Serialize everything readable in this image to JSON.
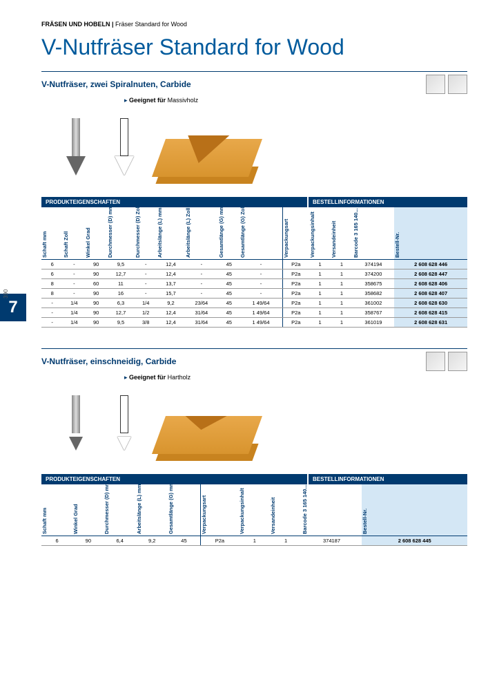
{
  "nav": {
    "page_side": "390",
    "chapter": "7"
  },
  "breadcrumb": {
    "main": "FRÄSEN UND HOBELN",
    "sep": " | ",
    "sub": "Fräser Standard for Wood"
  },
  "title": "V-Nutfräser Standard for Wood",
  "sections": [
    {
      "title": "V-Nutfräser, zwei Spiralnuten, Carbide",
      "suitable_label": "Geeignet für",
      "suitable_value": "Massivholz"
    },
    {
      "title": "V-Nutfräser, einschneidig, Carbide",
      "suitable_label": "Geeignet für",
      "suitable_value": "Hartholz"
    }
  ],
  "bars": {
    "prod": "PRODUKTEIGENSCHAFTEN",
    "order": "BESTELLINFORMATIONEN"
  },
  "table1": {
    "columns": [
      "Schaft mm",
      "Schaft Zoll",
      "Winkel Grad",
      "Durchmesser (D) mm",
      "Durchmesser (D) Zoll",
      "Arbeitslänge (L) mm",
      "Arbeitslänge (L) Zoll",
      "Gesamtlänge (G) mm",
      "Gesamtlänge (G) Zoll",
      "Verpackungsart",
      "Verpackungsinhalt",
      "Versandeinheit",
      "Barcode 3 165 140...",
      "Bestell-Nr."
    ],
    "rows": [
      [
        "6",
        "-",
        "90",
        "9,5",
        "-",
        "12,4",
        "-",
        "45",
        "-",
        "P2a",
        "1",
        "1",
        "374194",
        "2 608 628 446"
      ],
      [
        "6",
        "-",
        "90",
        "12,7",
        "-",
        "12,4",
        "-",
        "45",
        "-",
        "P2a",
        "1",
        "1",
        "374200",
        "2 608 628 447"
      ],
      [
        "8",
        "-",
        "60",
        "11",
        "-",
        "13,7",
        "-",
        "45",
        "-",
        "P2a",
        "1",
        "1",
        "358675",
        "2 608 628 406"
      ],
      [
        "8",
        "-",
        "90",
        "16",
        "-",
        "15,7",
        "-",
        "45",
        "-",
        "P2a",
        "1",
        "1",
        "358682",
        "2 608 628 407"
      ],
      [
        "-",
        "1/4",
        "90",
        "6,3",
        "1/4",
        "9,2",
        "23/64",
        "45",
        "1 49/64",
        "P2a",
        "1",
        "1",
        "361002",
        "2 608 628 630"
      ],
      [
        "-",
        "1/4",
        "90",
        "12,7",
        "1/2",
        "12,4",
        "31/64",
        "45",
        "1 49/64",
        "P2a",
        "1",
        "1",
        "358767",
        "2 608 628 415"
      ],
      [
        "-",
        "1/4",
        "90",
        "9,5",
        "3/8",
        "12,4",
        "31/64",
        "45",
        "1 49/64",
        "P2a",
        "1",
        "1",
        "361019",
        "2 608 628 631"
      ]
    ]
  },
  "table2": {
    "columns": [
      "Schaft mm",
      "Winkel Grad",
      "Durchmesser (D) mm",
      "Arbeitslänge (L) mm",
      "Gesamtlänge (G) mm",
      "Verpackungsart",
      "Verpackungsinhalt",
      "Versandeinheit",
      "Barcode 3 165 140...",
      "Bestell-Nr."
    ],
    "rows": [
      [
        "6",
        "90",
        "6,4",
        "9,2",
        "45",
        "P2a",
        "1",
        "1",
        "374187",
        "2 608 628 445"
      ]
    ]
  },
  "style": {
    "brand_blue": "#003a6f",
    "heading_blue": "#005a9c",
    "highlight_blue": "#d4e7f5",
    "wood_color": "#d8942e"
  }
}
